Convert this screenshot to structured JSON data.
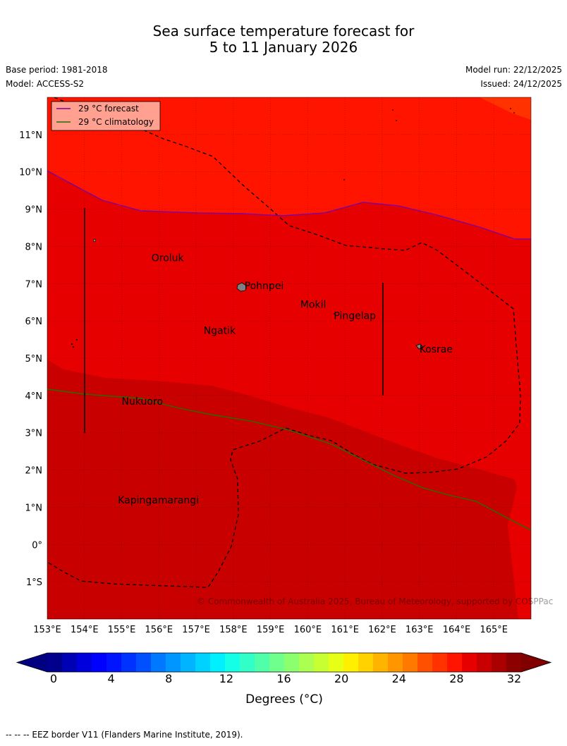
{
  "title_line1": "Sea surface temperature forecast for",
  "title_line2": "5 to 11 January 2026",
  "base_period": "Base period: 1981-2018",
  "model": "Model: ACCESS-S2",
  "model_run": "Model run: 22/12/2025",
  "issued": "Issued: 24/12/2025",
  "legend": {
    "forecast": "29 °C  forecast",
    "forecast_color": "#8000a0",
    "climatology": "29 °C  climatology",
    "climatology_color": "#207000"
  },
  "map": {
    "lon_range": [
      153,
      166
    ],
    "lat_range": [
      -2,
      12
    ],
    "lon_ticks": [
      {
        "v": 153,
        "label": "153°E"
      },
      {
        "v": 154,
        "label": "154°E"
      },
      {
        "v": 155,
        "label": "155°E"
      },
      {
        "v": 156,
        "label": "156°E"
      },
      {
        "v": 157,
        "label": "157°E"
      },
      {
        "v": 158,
        "label": "158°E"
      },
      {
        "v": 159,
        "label": "159°E"
      },
      {
        "v": 160,
        "label": "160°E"
      },
      {
        "v": 161,
        "label": "161°E"
      },
      {
        "v": 162,
        "label": "162°E"
      },
      {
        "v": 163,
        "label": "163°E"
      },
      {
        "v": 164,
        "label": "164°E"
      },
      {
        "v": 165,
        "label": "165°E"
      }
    ],
    "lat_ticks": [
      {
        "v": 11,
        "label": "11°N"
      },
      {
        "v": 10,
        "label": "10°N"
      },
      {
        "v": 9,
        "label": "9°N"
      },
      {
        "v": 8,
        "label": "8°N"
      },
      {
        "v": 7,
        "label": "7°N"
      },
      {
        "v": 6,
        "label": "6°N"
      },
      {
        "v": 5,
        "label": "5°N"
      },
      {
        "v": 4,
        "label": "4°N"
      },
      {
        "v": 3,
        "label": "3°N"
      },
      {
        "v": 2,
        "label": "2°N"
      },
      {
        "v": 1,
        "label": "1°N"
      },
      {
        "v": 0,
        "label": "0°"
      },
      {
        "v": -1,
        "label": "1°S"
      }
    ],
    "places": [
      {
        "name": "Oroluk",
        "lon": 155.8,
        "lat": 7.6
      },
      {
        "name": "Pohnpei",
        "lon": 158.3,
        "lat": 6.85
      },
      {
        "name": "Mokil",
        "lon": 159.8,
        "lat": 6.35
      },
      {
        "name": "Pingelap",
        "lon": 160.7,
        "lat": 6.05
      },
      {
        "name": "Ngatik",
        "lon": 157.2,
        "lat": 5.65
      },
      {
        "name": "Kosrae",
        "lon": 163.0,
        "lat": 5.15
      },
      {
        "name": "Nukuoro",
        "lon": 155.0,
        "lat": 3.75
      },
      {
        "name": "Kapingamarangi",
        "lon": 154.9,
        "lat": 1.1
      }
    ],
    "copyright": "© Commonwealth of Australia 2025, Bureau of Meteorology, supported by COSPPac"
  },
  "colorbar": {
    "colors": [
      "#00008c",
      "#0000b4",
      "#0000dc",
      "#0000ff",
      "#0014ff",
      "#0032ff",
      "#0050ff",
      "#0078ff",
      "#0096ff",
      "#00b4ff",
      "#00d2ff",
      "#00f0ff",
      "#14ffe6",
      "#32ffc8",
      "#50ffaa",
      "#6eff8c",
      "#8cff6e",
      "#aaff50",
      "#c8ff32",
      "#e6ff14",
      "#fff000",
      "#ffd200",
      "#ffb400",
      "#ff9600",
      "#ff7800",
      "#ff5000",
      "#ff3200",
      "#ff1400",
      "#e60000",
      "#c80000",
      "#aa0000",
      "#8c0000"
    ],
    "low_color": "#000080",
    "high_color": "#800000",
    "ticks": [
      {
        "v": 0,
        "label": "0"
      },
      {
        "v": 4,
        "label": "4"
      },
      {
        "v": 8,
        "label": "8"
      },
      {
        "v": 12,
        "label": "12"
      },
      {
        "v": 16,
        "label": "16"
      },
      {
        "v": 20,
        "label": "20"
      },
      {
        "v": 24,
        "label": "24"
      },
      {
        "v": 28,
        "label": "28"
      },
      {
        "v": 32,
        "label": "32"
      }
    ],
    "label": "Degrees (°C)"
  },
  "footnote": "--  --  -- EEZ border V11 (Flanders Marine Institute, 2019)."
}
